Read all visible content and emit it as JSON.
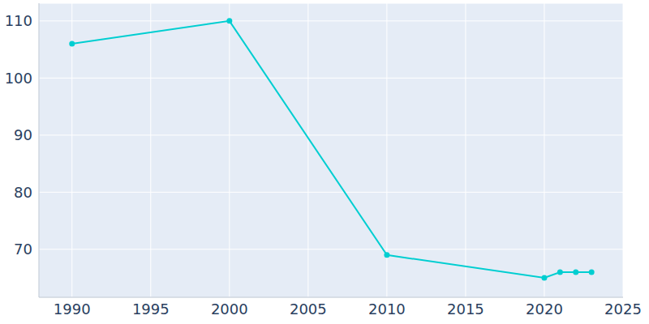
{
  "chart_data": {
    "type": "line",
    "x": [
      1990,
      2000,
      2010,
      2020,
      2021,
      2022,
      2023
    ],
    "values": [
      106,
      110,
      69,
      65,
      66,
      66,
      66
    ],
    "color": "#00ced1",
    "marker": "circle",
    "xlim": [
      1987.9,
      2025
    ],
    "ylim": [
      61.6,
      113.1
    ],
    "xticks": [
      1990,
      1995,
      2000,
      2005,
      2010,
      2015,
      2020,
      2025
    ],
    "yticks": [
      70,
      80,
      90,
      100,
      110
    ],
    "grid": true
  }
}
